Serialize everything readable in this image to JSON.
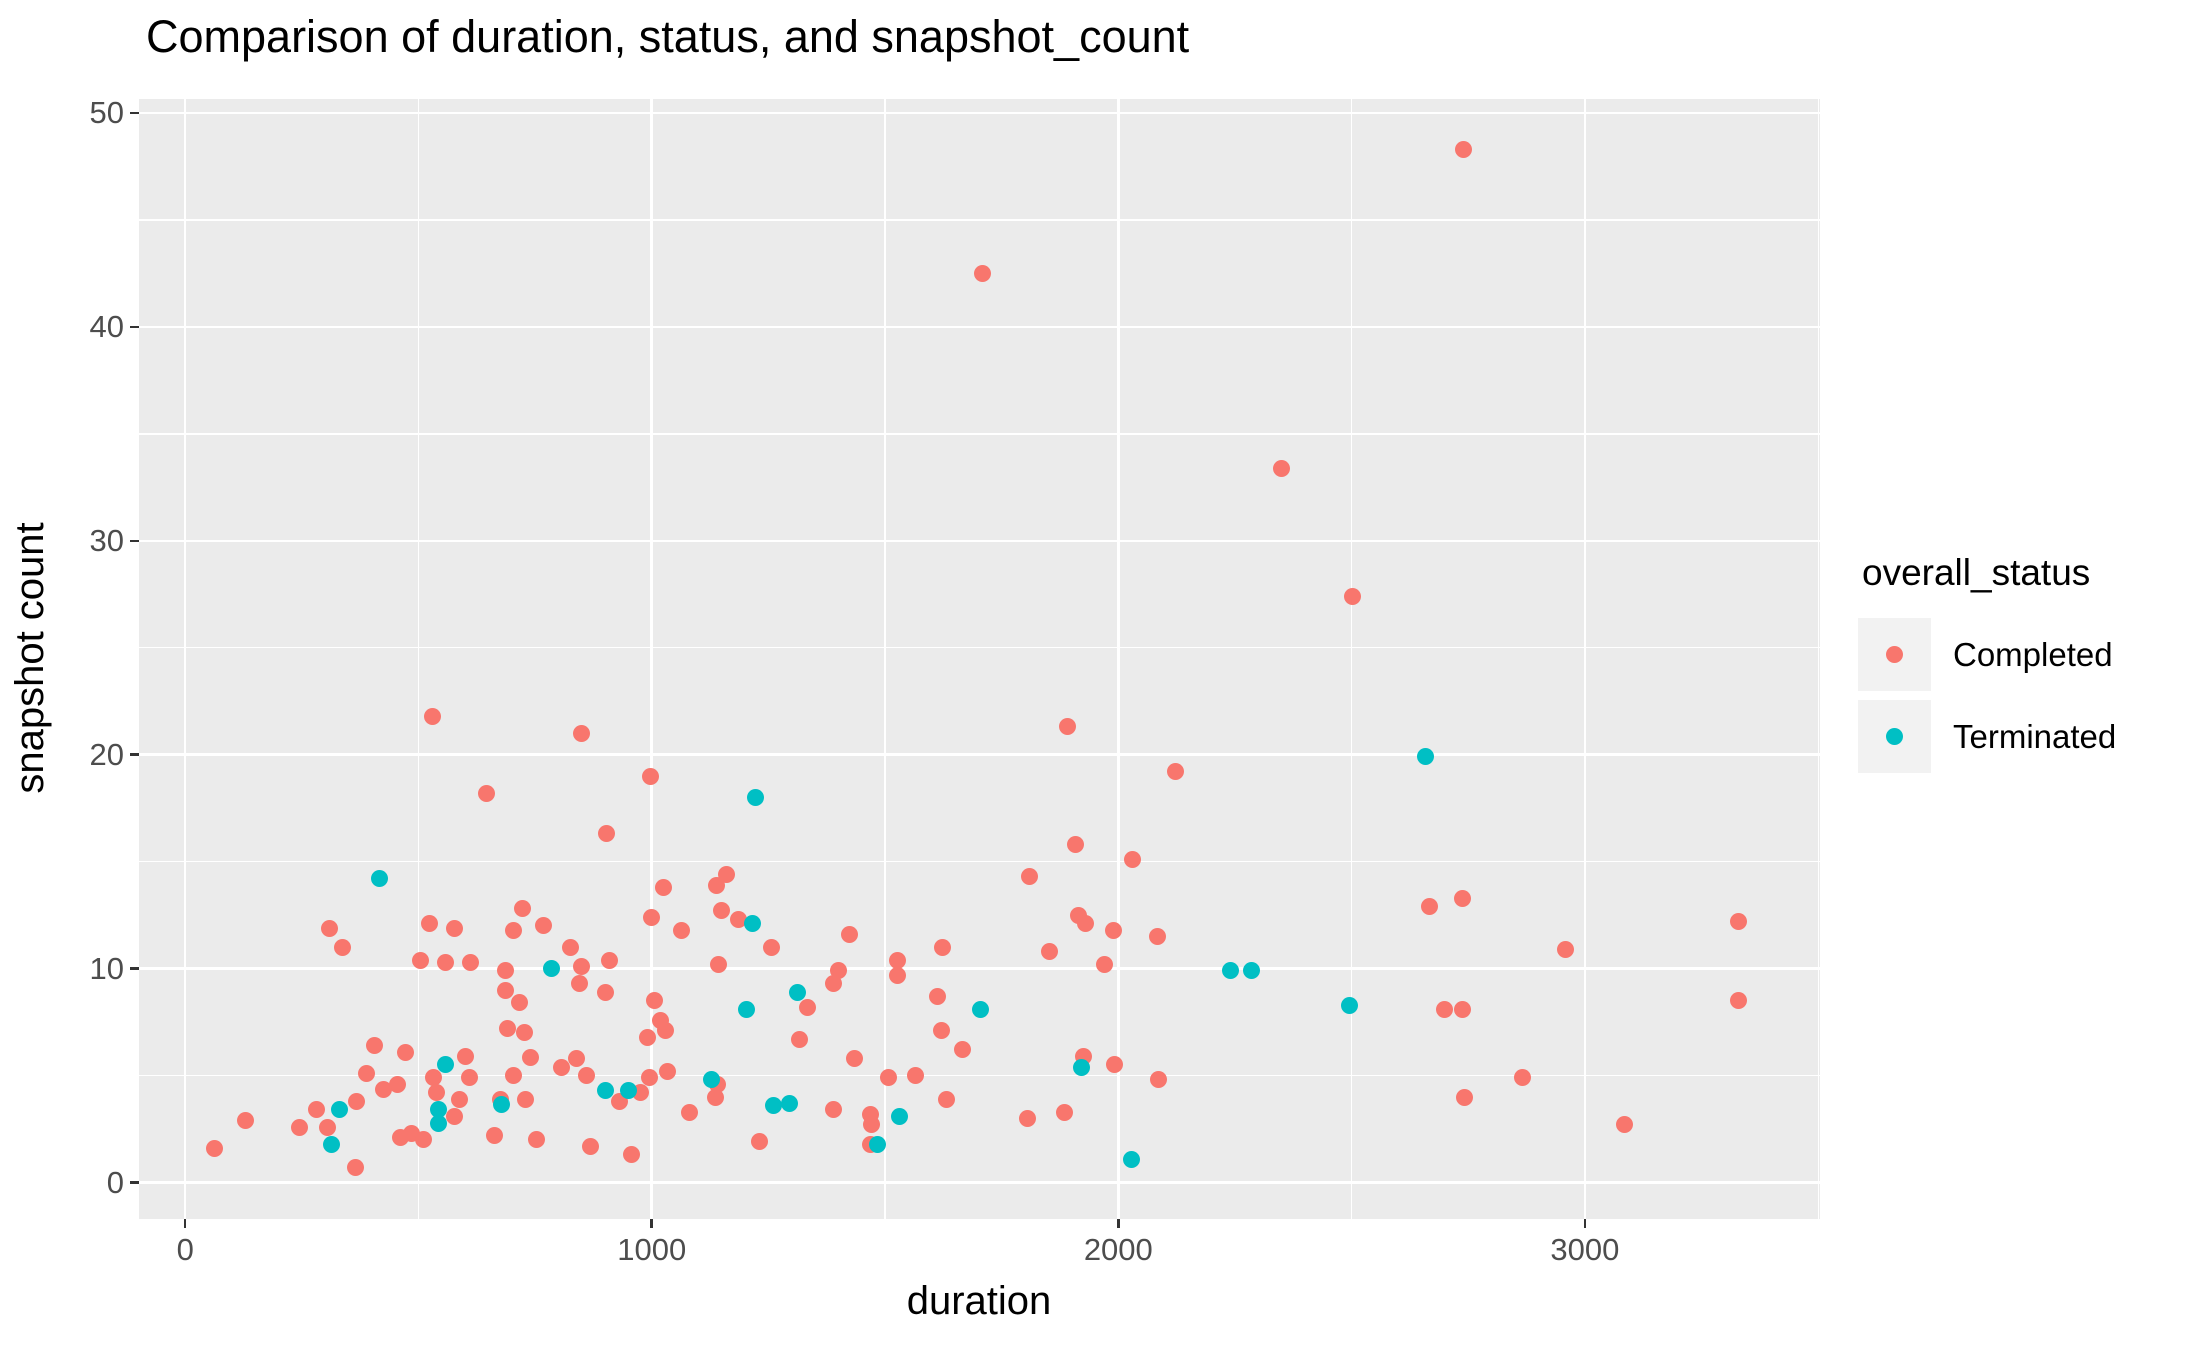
{
  "title": "Comparison of duration, status, and snapshot_count",
  "colors": {
    "page_bg": "#FFFFFF",
    "panel_bg": "#EBEBEB",
    "gridline": "#FFFFFF",
    "tick_text": "#4D4D4D",
    "tick_mark": "#333333",
    "completed": "#F8766D",
    "terminated": "#00BFC4",
    "legend_key_bg": "#F2F2F2"
  },
  "chart_data": {
    "type": "scatter",
    "title": "Comparison of duration, status, and snapshot_count",
    "xlabel": "duration",
    "ylabel": "snapshot count",
    "xlim": [
      -99,
      3504
    ],
    "ylim": [
      -1.7,
      50.65
    ],
    "x_major_ticks": [
      0,
      1000,
      2000,
      3000
    ],
    "x_minor_ticks": [
      500,
      1500,
      2500,
      3500
    ],
    "y_major_ticks": [
      0,
      10,
      20,
      30,
      40,
      50
    ],
    "y_minor_ticks": [
      5,
      15,
      25,
      35,
      45
    ],
    "grid": "on",
    "legend_position": "right",
    "legend_title": "overall_status",
    "series": [
      {
        "name": "Completed",
        "color": "#F8766D",
        "points": [
          [
            2740,
            48.3
          ],
          [
            1710,
            42.5
          ],
          [
            2350,
            33.4
          ],
          [
            2502,
            27.4
          ],
          [
            530,
            21.8
          ],
          [
            1891,
            21.3
          ],
          [
            849,
            21.0
          ],
          [
            2122,
            19.2
          ],
          [
            997,
            19.0
          ],
          [
            645,
            18.2
          ],
          [
            902,
            16.3
          ],
          [
            1908,
            15.8
          ],
          [
            2030,
            15.1
          ],
          [
            1025,
            13.8
          ],
          [
            722,
            12.8
          ],
          [
            310,
            11.9
          ],
          [
            523,
            12.1
          ],
          [
            577,
            11.9
          ],
          [
            703,
            11.8
          ],
          [
            768,
            12.0
          ],
          [
            1000,
            12.4
          ],
          [
            1064,
            11.8
          ],
          [
            337,
            11.0
          ],
          [
            826,
            11.0
          ],
          [
            504,
            10.4
          ],
          [
            557,
            10.3
          ],
          [
            611,
            10.3
          ],
          [
            909,
            10.4
          ],
          [
            686,
            9.9
          ],
          [
            850,
            10.1
          ],
          [
            846,
            9.3
          ],
          [
            900,
            8.9
          ],
          [
            686,
            9.0
          ],
          [
            716,
            8.4
          ],
          [
            1005,
            8.5
          ],
          [
            1018,
            7.6
          ],
          [
            690,
            7.2
          ],
          [
            727,
            7.0
          ],
          [
            1030,
            7.1
          ],
          [
            1160,
            14.4
          ],
          [
            1139,
            13.9
          ],
          [
            1810,
            14.3
          ],
          [
            1150,
            12.7
          ],
          [
            1185,
            12.3
          ],
          [
            1915,
            12.5
          ],
          [
            1930,
            12.1
          ],
          [
            1990,
            11.8
          ],
          [
            2083,
            11.5
          ],
          [
            1424,
            11.6
          ],
          [
            1257,
            11.0
          ],
          [
            1624,
            11.0
          ],
          [
            1852,
            10.8
          ],
          [
            1144,
            10.2
          ],
          [
            1970,
            10.2
          ],
          [
            1400,
            9.9
          ],
          [
            1527,
            10.4
          ],
          [
            1527,
            9.7
          ],
          [
            1390,
            9.3
          ],
          [
            1612,
            8.7
          ],
          [
            1333,
            8.2
          ],
          [
            1622,
            7.1
          ],
          [
            2737,
            13.3
          ],
          [
            2668,
            12.9
          ],
          [
            2958,
            10.9
          ],
          [
            3330,
            12.2
          ],
          [
            2700,
            8.1
          ],
          [
            2737,
            8.1
          ],
          [
            3330,
            8.5
          ],
          [
            406,
            6.4
          ],
          [
            473,
            6.1
          ],
          [
            389,
            5.1
          ],
          [
            282,
            3.4
          ],
          [
            129,
            2.9
          ],
          [
            63,
            1.6
          ],
          [
            245,
            2.6
          ],
          [
            305,
            2.6
          ],
          [
            366,
            0.7
          ],
          [
            367,
            3.8
          ],
          [
            454,
            4.6
          ],
          [
            425,
            4.35
          ],
          [
            533,
            4.9
          ],
          [
            538,
            4.2
          ],
          [
            577,
            3.1
          ],
          [
            600,
            5.9
          ],
          [
            609,
            4.9
          ],
          [
            587,
            3.9
          ],
          [
            703,
            5.0
          ],
          [
            740,
            5.85
          ],
          [
            730,
            3.9
          ],
          [
            675,
            3.9
          ],
          [
            664,
            2.2
          ],
          [
            754,
            2.0
          ],
          [
            807,
            5.4
          ],
          [
            838,
            5.8
          ],
          [
            861,
            5.0
          ],
          [
            930,
            3.8
          ],
          [
            975,
            4.2
          ],
          [
            990,
            6.8
          ],
          [
            995,
            4.9
          ],
          [
            1034,
            5.2
          ],
          [
            868,
            1.7
          ],
          [
            957,
            1.3
          ],
          [
            461,
            2.1
          ],
          [
            486,
            2.3
          ],
          [
            511,
            2.0
          ],
          [
            1316,
            6.7
          ],
          [
            1434,
            5.8
          ],
          [
            1667,
            6.2
          ],
          [
            1507,
            4.9
          ],
          [
            1566,
            5.0
          ],
          [
            1140,
            4.6
          ],
          [
            1137,
            4.0
          ],
          [
            1080,
            3.3
          ],
          [
            1389,
            3.4
          ],
          [
            1230,
            1.9
          ],
          [
            1469,
            3.2
          ],
          [
            1470,
            2.7
          ],
          [
            1469,
            1.8
          ],
          [
            1632,
            3.9
          ],
          [
            1805,
            3.0
          ],
          [
            1885,
            3.3
          ],
          [
            1925,
            5.9
          ],
          [
            1991,
            5.5
          ],
          [
            2087,
            4.8
          ],
          [
            2743,
            4.0
          ],
          [
            2867,
            4.9
          ],
          [
            3086,
            2.7
          ]
        ]
      },
      {
        "name": "Terminated",
        "color": "#00BFC4",
        "points": [
          [
            2658,
            19.9
          ],
          [
            1222,
            18.0
          ],
          [
            416,
            14.2
          ],
          [
            785,
            10.0
          ],
          [
            1217,
            12.1
          ],
          [
            2240,
            9.9
          ],
          [
            2285,
            9.9
          ],
          [
            1312,
            8.9
          ],
          [
            1203,
            8.1
          ],
          [
            1704,
            8.1
          ],
          [
            2495,
            8.3
          ],
          [
            557,
            5.5
          ],
          [
            313,
            1.8
          ],
          [
            331,
            3.4
          ],
          [
            542,
            3.4
          ],
          [
            544,
            2.75
          ],
          [
            677,
            3.65
          ],
          [
            900,
            4.3
          ],
          [
            950,
            4.3
          ],
          [
            1129,
            4.8
          ],
          [
            1261,
            3.6
          ],
          [
            1295,
            3.7
          ],
          [
            1531,
            3.1
          ],
          [
            1483,
            1.8
          ],
          [
            1922,
            5.4
          ],
          [
            2028,
            1.1
          ]
        ]
      }
    ]
  },
  "legend": {
    "title": "overall_status",
    "entries": [
      {
        "label": "Completed",
        "color": "#F8766D"
      },
      {
        "label": "Terminated",
        "color": "#00BFC4"
      }
    ]
  },
  "axes": {
    "x_label": "duration",
    "y_label": "snapshot count"
  }
}
